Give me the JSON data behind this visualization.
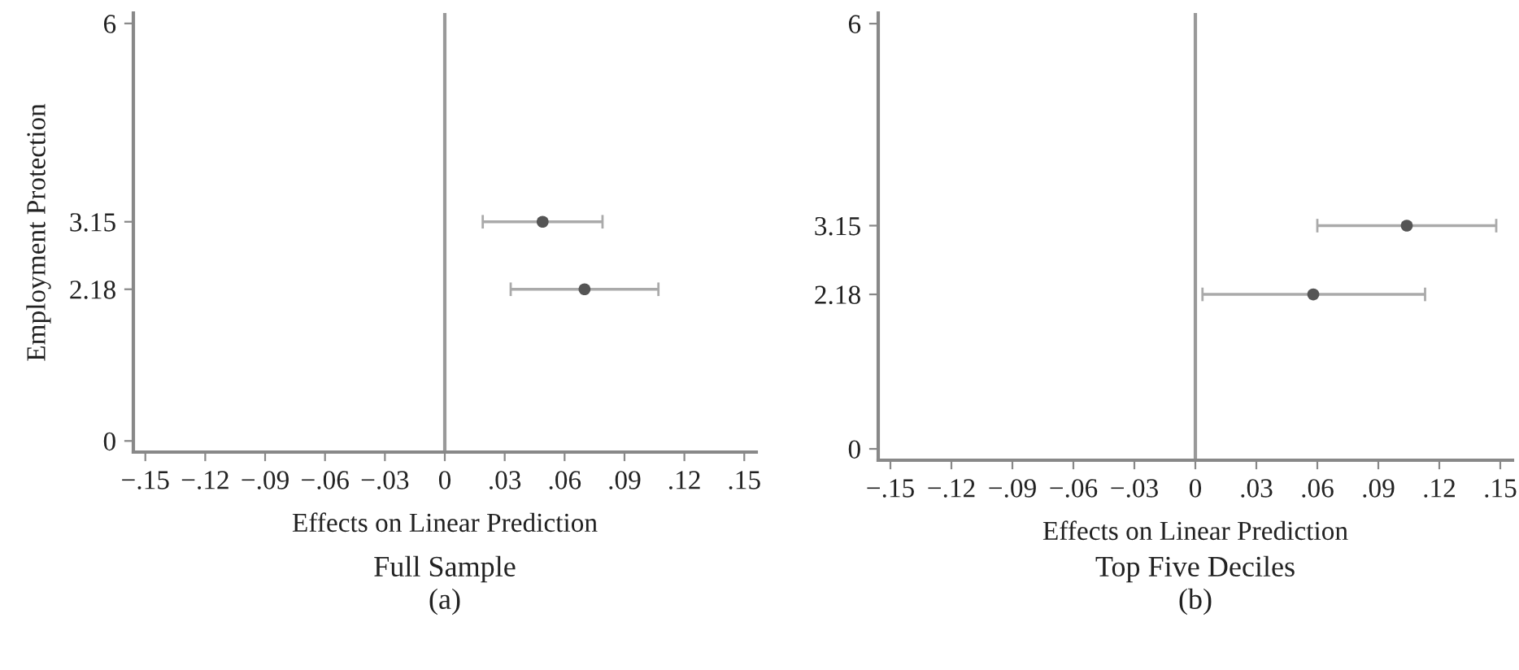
{
  "chart_data": [
    {
      "type": "scatter",
      "title": "Full Sample",
      "subtitle": "(a)",
      "xlabel": "Effects on Linear Prediction",
      "ylabel": "Employment Protection",
      "series": [
        {
          "color": "#555555",
          "x": [
            0.049,
            0.07
          ],
          "values": [
            3.15,
            2.18
          ],
          "xerrors": [
            [
              0.019,
              0.079
            ],
            [
              0.033,
              0.107
            ]
          ]
        }
      ],
      "xlim": [
        -0.156,
        0.156
      ],
      "ylim": [
        -0.16,
        6.15
      ],
      "xticks": [
        {
          "value": -0.15,
          "label": "−.15"
        },
        {
          "value": -0.12,
          "label": "−.12"
        },
        {
          "value": -0.09,
          "label": "−.09"
        },
        {
          "value": -0.06,
          "label": "−.06"
        },
        {
          "value": -0.03,
          "label": "−.03"
        },
        0,
        {
          "value": 0.03,
          "label": ".03"
        },
        {
          "value": 0.06,
          "label": ".06"
        },
        {
          "value": 0.09,
          "label": ".09"
        },
        {
          "value": 0.12,
          "label": ".12"
        },
        {
          "value": 0.15,
          "label": ".15"
        }
      ],
      "yticks": [
        0,
        2.18,
        3.15,
        6
      ],
      "ref_lines": [
        {
          "axis": "x",
          "value": 0,
          "color": "#999999"
        }
      ],
      "marker": "circle",
      "grid": false,
      "legend": false
    },
    {
      "type": "scatter",
      "title": "Top Five Deciles",
      "subtitle": "(b)",
      "xlabel": "Effects on Linear Prediction",
      "series": [
        {
          "color": "#555555",
          "x": [
            0.104,
            0.058
          ],
          "values": [
            3.15,
            2.18
          ],
          "xerrors": [
            [
              0.06,
              0.148
            ],
            [
              0.0035,
              0.113
            ]
          ]
        }
      ],
      "xlim": [
        -0.156,
        0.156
      ],
      "ylim": [
        -0.16,
        6.15
      ],
      "xticks": [
        {
          "value": -0.15,
          "label": "−.15"
        },
        {
          "value": -0.12,
          "label": "−.12"
        },
        {
          "value": -0.09,
          "label": "−.09"
        },
        {
          "value": -0.06,
          "label": "−.06"
        },
        {
          "value": -0.03,
          "label": "−.03"
        },
        0,
        {
          "value": 0.03,
          "label": ".03"
        },
        {
          "value": 0.06,
          "label": ".06"
        },
        {
          "value": 0.09,
          "label": ".09"
        },
        {
          "value": 0.12,
          "label": ".12"
        },
        {
          "value": 0.15,
          "label": ".15"
        }
      ],
      "yticks": [
        0,
        2.18,
        3.15,
        6
      ],
      "ref_lines": [
        {
          "axis": "x",
          "value": 0,
          "color": "#999999"
        }
      ],
      "marker": "circle",
      "grid": false,
      "legend": false
    }
  ]
}
